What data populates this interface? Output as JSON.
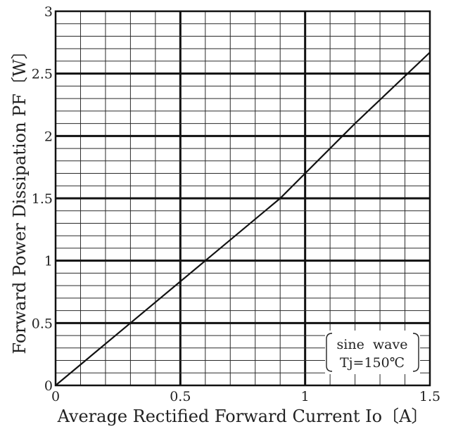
{
  "chart_data": {
    "type": "line",
    "xlabel": "Average Rectified Forward Current Io〔A〕",
    "ylabel": "Forward Power Dissipation PF〔W〕",
    "xlim": [
      0,
      1.5
    ],
    "ylim": [
      0,
      3
    ],
    "x_ticks": [
      "0",
      "0.5",
      "1",
      "1.5"
    ],
    "y_ticks": [
      "0",
      "0.5",
      "1",
      "1.5",
      "2",
      "2.5",
      "3"
    ],
    "grid": "on",
    "series": [
      {
        "x": [
          0,
          0.3,
          0.6,
          0.9,
          1.2,
          1.5
        ],
        "y": [
          0,
          0.5,
          1.0,
          1.5,
          2.1,
          2.67
        ]
      }
    ],
    "annotation": {
      "line1": "sine  wave",
      "line2": "Tj=150℃",
      "placement": "bottom-right"
    }
  }
}
